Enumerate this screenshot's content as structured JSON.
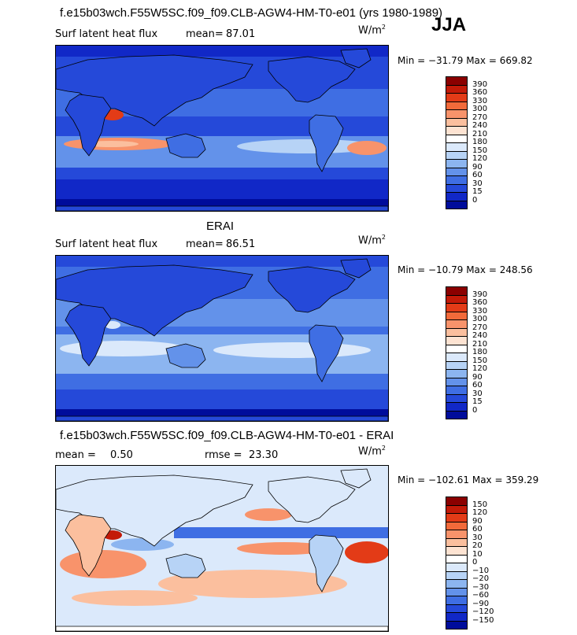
{
  "header": {
    "title": "f.e15b03wch.F55W5SC.f09_f09.CLB-AGW4-HM-T0-e01 (yrs 1980-1989)",
    "season": "JJA"
  },
  "panels": [
    {
      "id": "model",
      "heading": "",
      "left_label": "Surf latent heat flux",
      "stat_label": "mean=",
      "stat_value": "87.01",
      "stat2_label": "",
      "stat2_value": "",
      "unit": "W/m",
      "unit_sup": "2",
      "minmax": "Min = −31.79 Max = 669.82",
      "colorbar": {
        "labels": [
          "390",
          "360",
          "330",
          "300",
          "270",
          "240",
          "210",
          "180",
          "150",
          "120",
          "90",
          "60",
          "30",
          "15",
          "0"
        ],
        "colors": [
          "#8b0000",
          "#c31a08",
          "#e33b17",
          "#f26a3a",
          "#f8936b",
          "#fbbf9e",
          "#fde3d2",
          "#ffffff",
          "#dbe9fb",
          "#b7d3f6",
          "#8cb5f0",
          "#6392ea",
          "#3f6ee3",
          "#2549d9",
          "#1128c7",
          "#000c9b"
        ]
      }
    },
    {
      "id": "obs",
      "heading": "ERAI",
      "left_label": "Surf latent heat flux",
      "stat_label": "mean=",
      "stat_value": "86.51",
      "stat2_label": "",
      "stat2_value": "",
      "unit": "W/m",
      "unit_sup": "2",
      "minmax": "Min = −10.79 Max = 248.56",
      "colorbar": {
        "labels": [
          "390",
          "360",
          "330",
          "300",
          "270",
          "240",
          "210",
          "180",
          "150",
          "120",
          "90",
          "60",
          "30",
          "15",
          "0"
        ],
        "colors": [
          "#8b0000",
          "#c31a08",
          "#e33b17",
          "#f26a3a",
          "#f8936b",
          "#fbbf9e",
          "#fde3d2",
          "#ffffff",
          "#dbe9fb",
          "#b7d3f6",
          "#8cb5f0",
          "#6392ea",
          "#3f6ee3",
          "#2549d9",
          "#1128c7",
          "#000c9b"
        ]
      }
    },
    {
      "id": "diff",
      "heading": "f.e15b03wch.F55W5SC.f09_f09.CLB-AGW4-HM-T0-e01 - ERAI",
      "left_label": "",
      "stat_label": "mean =",
      "stat_value": "0.50",
      "stat2_label": "rmse =",
      "stat2_value": "23.30",
      "unit": "W/m",
      "unit_sup": "2",
      "minmax": "Min = −102.61 Max = 359.29",
      "colorbar": {
        "labels": [
          "150",
          "120",
          "90",
          "60",
          "30",
          "20",
          "10",
          "0",
          "−10",
          "−20",
          "−30",
          "−60",
          "−90",
          "−120",
          "−150"
        ],
        "colors": [
          "#8b0000",
          "#c31a08",
          "#e33b17",
          "#f26a3a",
          "#f8936b",
          "#fbbf9e",
          "#fde3d2",
          "#ffffff",
          "#dbe9fb",
          "#b7d3f6",
          "#8cb5f0",
          "#6392ea",
          "#3f6ee3",
          "#2549d9",
          "#1128c7",
          "#000c9b"
        ]
      }
    }
  ]
}
